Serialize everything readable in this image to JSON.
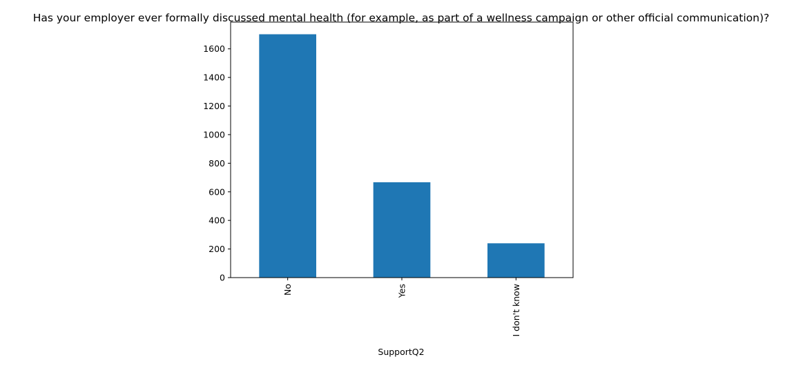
{
  "chart_data": {
    "type": "bar",
    "title": "Has your employer ever formally discussed mental health (for example, as part of a wellness campaign or other official communication)?",
    "xlabel": "SupportQ2",
    "ylabel": "",
    "categories": [
      "No",
      "Yes",
      "I don't know"
    ],
    "values": [
      1702,
      667,
      240
    ],
    "ylim": [
      0,
      1787
    ],
    "yticks": [
      0,
      200,
      400,
      600,
      800,
      1000,
      1200,
      1400,
      1600
    ],
    "grid": false,
    "legend": "none",
    "colors": {
      "bar": "#1f77b4",
      "axis": "#000000",
      "background": "#ffffff"
    }
  }
}
